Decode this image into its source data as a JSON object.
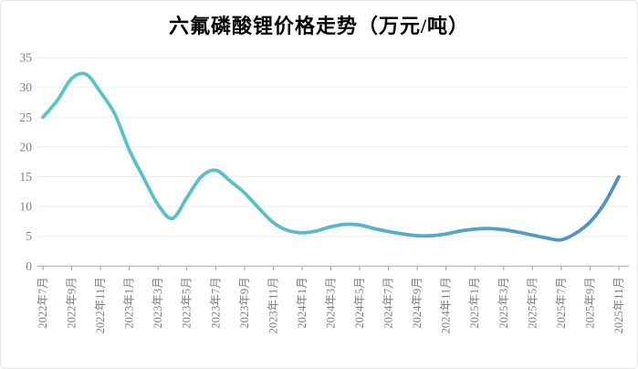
{
  "chart_data": {
    "type": "line",
    "title": "六氟磷酸锂价格走势（万元/吨）",
    "xlabel": "",
    "ylabel": "",
    "unit": "万元/吨",
    "ylim": [
      0,
      35
    ],
    "yticks": [
      0,
      5,
      10,
      15,
      20,
      25,
      30,
      35
    ],
    "grid": true,
    "legend_position": "none",
    "x_tick_labels": [
      "2022年7月",
      "2022年9月",
      "2022年11月",
      "2023年1月",
      "2023年3月",
      "2023年5月",
      "2023年7月",
      "2023年9月",
      "2023年11月",
      "2024年1月",
      "2024年3月",
      "2024年5月",
      "2024年7月",
      "2024年9月",
      "2024年11月",
      "2025年1月",
      "2025年3月",
      "2025年5月",
      "2025年7月",
      "2025年9月",
      "2025年11月"
    ],
    "series": [
      {
        "name": "六氟磷酸锂价格",
        "x": [
          "2022-07",
          "2022-08",
          "2022-09",
          "2022-10",
          "2022-11",
          "2022-12",
          "2023-01",
          "2023-02",
          "2023-03",
          "2023-04",
          "2023-05",
          "2023-06",
          "2023-07",
          "2023-08",
          "2023-09",
          "2023-10",
          "2023-11",
          "2023-12",
          "2024-01",
          "2024-02",
          "2024-03",
          "2024-04",
          "2024-05",
          "2024-06",
          "2024-07",
          "2024-08",
          "2024-09",
          "2024-10",
          "2024-11",
          "2024-12",
          "2025-01",
          "2025-02",
          "2025-03",
          "2025-04",
          "2025-05",
          "2025-06",
          "2025-07",
          "2025-08",
          "2025-09",
          "2025-10",
          "2025-11"
        ],
        "values": [
          25.0,
          27.8,
          31.5,
          32.2,
          29.2,
          25.5,
          19.5,
          14.8,
          10.3,
          8.0,
          11.5,
          15.0,
          16.1,
          14.3,
          12.3,
          9.7,
          7.3,
          6.0,
          5.6,
          5.9,
          6.6,
          7.0,
          6.9,
          6.3,
          5.8,
          5.4,
          5.1,
          5.1,
          5.4,
          5.9,
          6.2,
          6.3,
          6.1,
          5.7,
          5.2,
          4.7,
          4.4,
          5.5,
          7.4,
          10.5,
          15.0
        ]
      }
    ],
    "colors": {
      "line_gradient_stops": [
        {
          "offset": 0.0,
          "color": "#55c6cc"
        },
        {
          "offset": 0.45,
          "color": "#5abcc8"
        },
        {
          "offset": 0.72,
          "color": "#55a5c8"
        },
        {
          "offset": 1.0,
          "color": "#4c8fc7"
        }
      ],
      "grid": "#ebebeb",
      "axis": "#b3b3b3",
      "tick": "#9a9a9a",
      "tick_label": "#7f7f7f",
      "title": "#000000"
    }
  }
}
